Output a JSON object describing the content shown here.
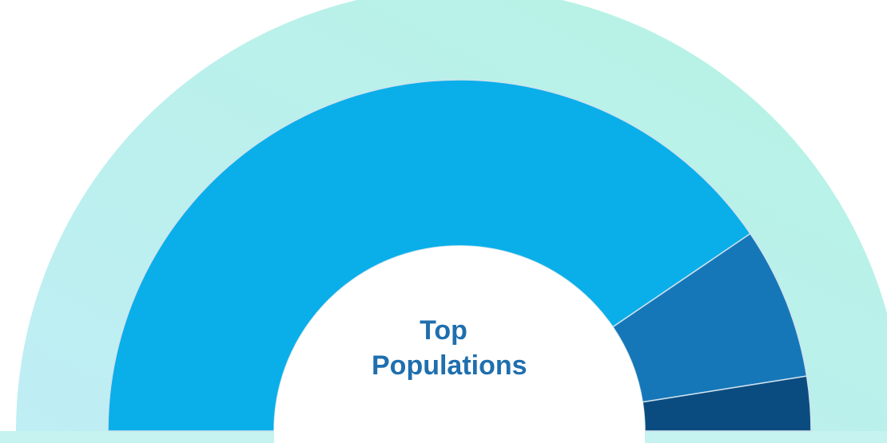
{
  "chart_data": {
    "type": "pie",
    "semicircle": true,
    "title": "Top Populations",
    "values": [
      81,
      14,
      5
    ],
    "colors": [
      "#0aafe9",
      "#1677b8",
      "#0b4c80"
    ]
  }
}
